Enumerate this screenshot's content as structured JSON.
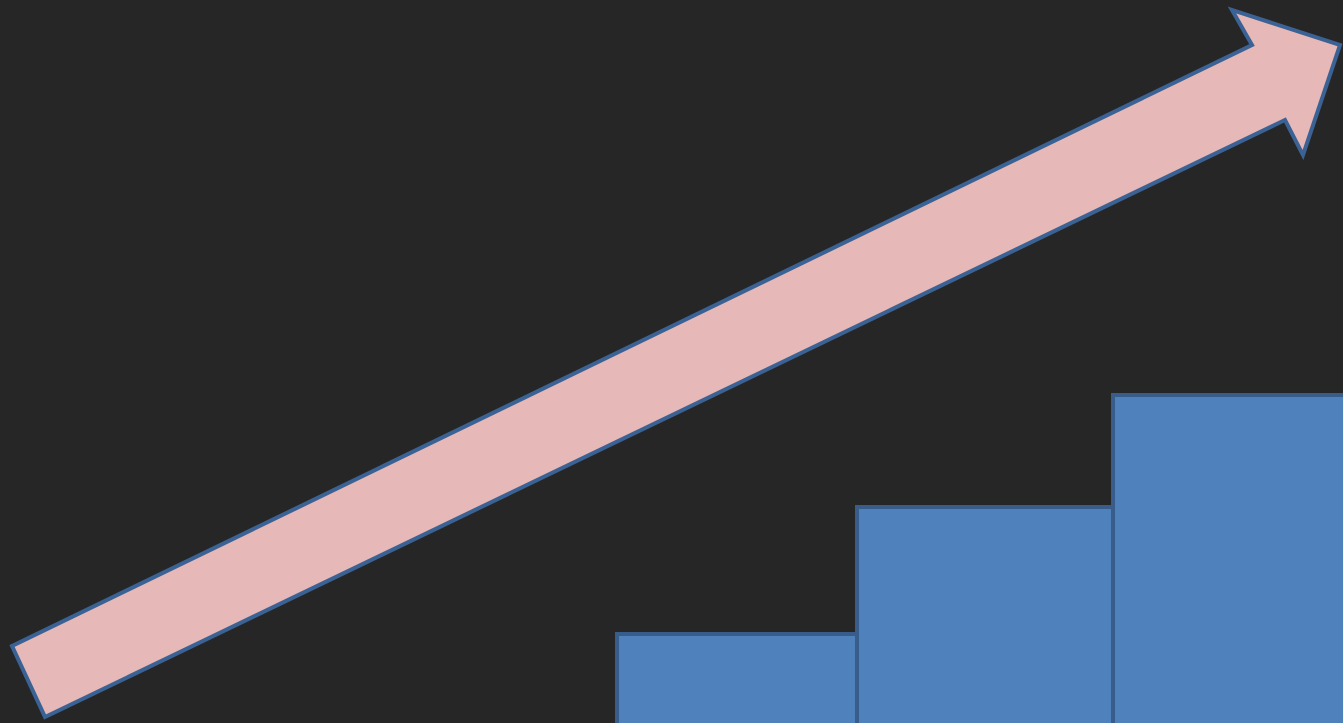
{
  "colors": {
    "background": "#262626",
    "arrow_fill": "#E6B8B7",
    "arrow_stroke": "#3A6294",
    "bar_fill": "#4F81BD",
    "bar_stroke": "#385D8A"
  },
  "shapes": {
    "arrow": "rising-arrow",
    "bars": "step-blocks"
  },
  "steps": [
    {
      "level": 1
    },
    {
      "level": 2
    },
    {
      "level": 3
    }
  ]
}
